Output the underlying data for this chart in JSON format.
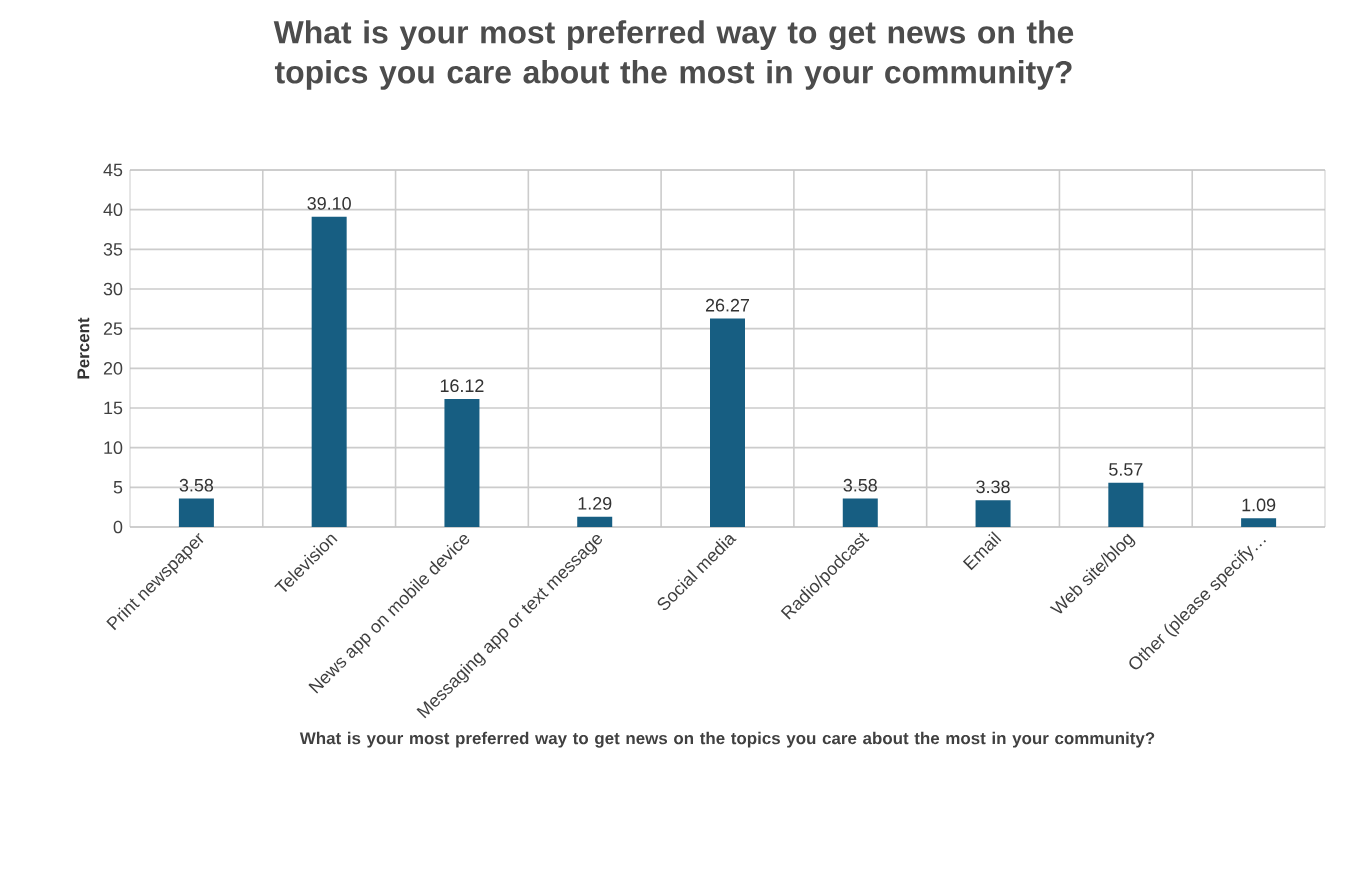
{
  "chart_data": {
    "type": "bar",
    "title": "What is your most preferred way to get news on the topics you care about the most in your community?",
    "xlabel": "What is your most preferred way to get news on the topics you care about the most in your community?",
    "ylabel": "Percent",
    "categories": [
      "Print newspaper",
      "Television",
      "News app on mobile device",
      "Messaging app or text message",
      "Social media",
      "Radio/podcast",
      "Email",
      "Web site/blog",
      "Other (please specify…"
    ],
    "values": [
      3.58,
      39.1,
      16.12,
      1.29,
      26.27,
      3.58,
      3.38,
      5.57,
      1.09
    ],
    "value_labels": [
      "3.58",
      "39.10",
      "16.12",
      "1.29",
      "26.27",
      "3.58",
      "3.38",
      "5.57",
      "1.09"
    ],
    "color": "#175e82",
    "ylim": [
      0,
      45
    ],
    "yticks": [
      0,
      5,
      10,
      15,
      20,
      25,
      30,
      35,
      40,
      45
    ],
    "grid": true
  }
}
